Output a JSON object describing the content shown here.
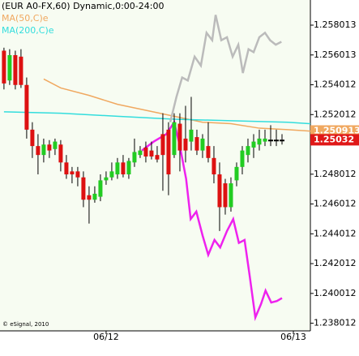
{
  "chart_data": {
    "type": "candlestick",
    "title": "(EUR A0-FX,60) Dynamic,0:00-24:00",
    "copyright": "© eSignal, 2010",
    "up_color": "#22cc22",
    "down_color": "#dd1111",
    "wick_color": "#000000",
    "candles": [
      [
        1.2563,
        1.2565,
        1.2537,
        1.2541
      ],
      [
        1.2543,
        1.2564,
        1.254,
        1.256
      ],
      [
        1.256,
        1.2563,
        1.2537,
        1.254
      ],
      [
        1.2559,
        1.2564,
        1.2538,
        1.254
      ],
      [
        1.254,
        1.2545,
        1.2504,
        1.251
      ],
      [
        1.251,
        1.2515,
        1.2491,
        1.2499
      ],
      [
        1.2499,
        1.2507,
        1.248,
        1.2493
      ],
      [
        1.2493,
        1.2504,
        1.2488,
        1.25
      ],
      [
        1.25,
        1.2503,
        1.2491,
        1.2496
      ],
      [
        1.2497,
        1.2504,
        1.2493,
        1.2502
      ],
      [
        1.25,
        1.2503,
        1.2482,
        1.2488
      ],
      [
        1.2488,
        1.2493,
        1.2477,
        1.248
      ],
      [
        1.2482,
        1.2485,
        1.2474,
        1.248
      ],
      [
        1.2482,
        1.2485,
        1.2472,
        1.2478
      ],
      [
        1.2478,
        1.2482,
        1.2458,
        1.2463
      ],
      [
        1.2466,
        1.2472,
        1.2447,
        1.2463
      ],
      [
        1.2463,
        1.2472,
        1.2461,
        1.2467
      ],
      [
        1.2465,
        1.248,
        1.2462,
        1.2476
      ],
      [
        1.2476,
        1.2482,
        1.2473,
        1.2478
      ],
      [
        1.2478,
        1.2488,
        1.2476,
        1.2482
      ],
      [
        1.248,
        1.2491,
        1.2477,
        1.2488
      ],
      [
        1.2488,
        1.2493,
        1.2478,
        1.248
      ],
      [
        1.248,
        1.2491,
        1.2477,
        1.2489
      ],
      [
        1.2488,
        1.2504,
        1.2485,
        1.2495
      ],
      [
        1.2493,
        1.2499,
        1.2491,
        1.2496
      ],
      [
        1.2498,
        1.2502,
        1.2488,
        1.2492
      ],
      [
        1.2496,
        1.2502,
        1.249,
        1.2492
      ],
      [
        1.2493,
        1.2499,
        1.2488,
        1.249
      ],
      [
        1.2507,
        1.2521,
        1.2469,
        1.2493
      ],
      [
        1.251,
        1.2515,
        1.2466,
        1.248
      ],
      [
        1.2493,
        1.2521,
        1.2491,
        1.2515
      ],
      [
        1.2514,
        1.2521,
        1.2482,
        1.2496
      ],
      [
        1.2504,
        1.2526,
        1.2488,
        1.2496
      ],
      [
        1.2502,
        1.2532,
        1.2496,
        1.251
      ],
      [
        1.2505,
        1.251,
        1.2493,
        1.2496
      ],
      [
        1.2496,
        1.2507,
        1.2491,
        1.2504
      ],
      [
        1.2499,
        1.2515,
        1.2488,
        1.2491
      ],
      [
        1.2491,
        1.2499,
        1.2474,
        1.248
      ],
      [
        1.248,
        1.2488,
        1.2442,
        1.2458
      ],
      [
        1.2474,
        1.2477,
        1.2453,
        1.2458
      ],
      [
        1.2458,
        1.2478,
        1.2455,
        1.2474
      ],
      [
        1.2476,
        1.2488,
        1.2472,
        1.2485
      ],
      [
        1.2485,
        1.2499,
        1.248,
        1.2496
      ],
      [
        1.2493,
        1.2504,
        1.2488,
        1.2499
      ],
      [
        1.2498,
        1.2507,
        1.2491,
        1.2502
      ],
      [
        1.25,
        1.251,
        1.2496,
        1.2504
      ],
      [
        1.2502,
        1.251,
        1.2499,
        1.2504
      ],
      [
        1.2503,
        1.2513,
        1.2499,
        1.2503
      ],
      [
        1.2503,
        1.251,
        1.2499,
        1.2503
      ],
      [
        1.2503,
        1.2507,
        1.25,
        1.2503
      ]
    ],
    "series": [
      {
        "name": "MA(50,C)e",
        "color": "#f0a860",
        "x": [
          7,
          10,
          15,
          20,
          25,
          30,
          35,
          40,
          45,
          50,
          54
        ],
        "values": [
          1.2544,
          1.2538,
          1.2533,
          1.2527,
          1.2523,
          1.2519,
          1.2515,
          1.2514,
          1.2511,
          1.251,
          1.2509
        ]
      },
      {
        "name": "MA(200,C)e",
        "color": "#33dddd",
        "x": [
          0,
          10,
          20,
          30,
          40,
          50,
          54
        ],
        "values": [
          1.2522,
          1.2521,
          1.2519,
          1.2517,
          1.2516,
          1.2515,
          1.2514
        ]
      }
    ],
    "projections": [
      {
        "color": "#bbbbbb",
        "x": [
          29.3,
          30.4,
          31.4,
          32.4,
          33.6,
          34.7,
          35.7,
          36.7,
          37.3,
          38.3,
          39.3,
          40.3,
          41.3,
          42.1,
          43.1,
          44,
          45,
          46,
          46.9,
          47.9,
          48.9
        ],
        "values": [
          1.2515,
          1.2532,
          1.2545,
          1.2543,
          1.2559,
          1.2553,
          1.2575,
          1.257,
          1.2587,
          1.257,
          1.2572,
          1.2559,
          1.2567,
          1.2548,
          1.2564,
          1.2562,
          1.2572,
          1.2575,
          1.257,
          1.2567,
          1.2569
        ]
      },
      {
        "color": "#ee22ee",
        "x": [
          24.3,
          26.4,
          28.6,
          30,
          31,
          32.1,
          32.9,
          33.9,
          35,
          36,
          37.1,
          38.1,
          39.3,
          40.4,
          41.4,
          42.4,
          43.3,
          44.3,
          45.3,
          46.1,
          47.1,
          48.1,
          49
        ],
        "values": [
          1.2496,
          1.2502,
          1.2507,
          1.2515,
          1.2499,
          1.2477,
          1.245,
          1.2455,
          1.2439,
          1.2426,
          1.2436,
          1.2431,
          1.2442,
          1.245,
          1.2434,
          1.2436,
          1.2412,
          1.2384,
          1.2393,
          1.2402,
          1.2394,
          1.2395,
          1.2397
        ]
      }
    ],
    "price_markers": [
      {
        "value": 1.250913,
        "color": "#f0a860"
      },
      {
        "value": 1.25032,
        "color": "#e01818"
      }
    ],
    "xlim": [
      -0.7,
      54
    ],
    "ylim": [
      1.2375,
      1.2597
    ],
    "yticks": [
      1.258013,
      1.256013,
      1.254012,
      1.252012,
      1.248012,
      1.246012,
      1.244012,
      1.242012,
      1.240012,
      1.238012
    ],
    "xticks": [
      {
        "value": 18,
        "label": "06/12"
      },
      {
        "value": 51,
        "label": "06/13"
      }
    ]
  }
}
